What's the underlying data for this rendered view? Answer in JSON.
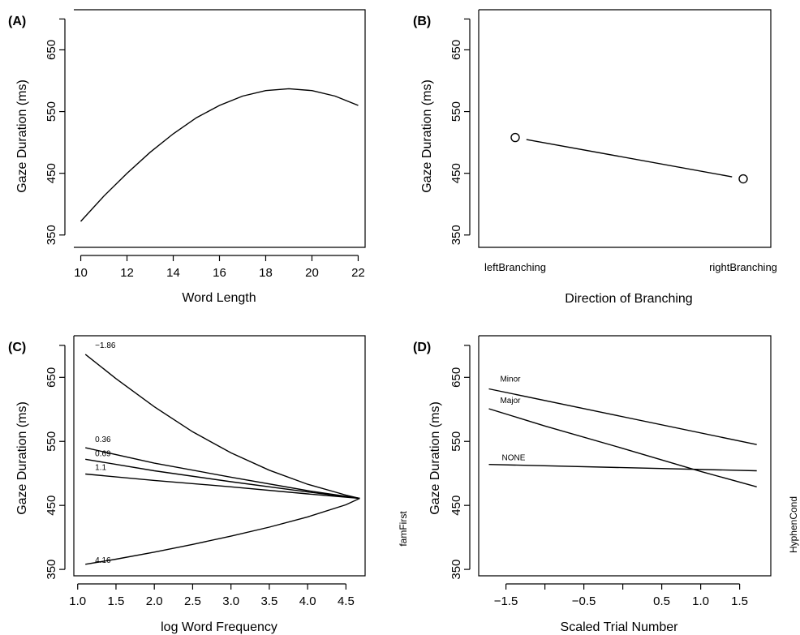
{
  "chart_data": [
    {
      "panel": "(A)",
      "type": "line",
      "xlabel": "Word Length",
      "ylabel": "Gaze Duration (ms)",
      "xlim": [
        9.7,
        22.3
      ],
      "ylim": [
        330,
        715
      ],
      "xticks": [
        "10",
        "12",
        "14",
        "16",
        "18",
        "20",
        "22"
      ],
      "yticks": [
        "350",
        "450",
        "550",
        "650"
      ],
      "series": [
        {
          "x": [
            10,
            11,
            12,
            13,
            14,
            15,
            16,
            17,
            18,
            19,
            20,
            21,
            22
          ],
          "y": [
            372,
            413,
            450,
            484,
            514,
            540,
            560,
            575,
            584,
            587,
            584,
            575,
            560
          ]
        }
      ]
    },
    {
      "panel": "(B)",
      "type": "scatter",
      "xlabel": "Direction of Branching",
      "ylabel": "Gaze Duration (ms)",
      "ylim": [
        330,
        715
      ],
      "yticks": [
        "350",
        "450",
        "550",
        "650"
      ],
      "categories": [
        "leftBranching",
        "rightBranching"
      ],
      "values": [
        508,
        441
      ]
    },
    {
      "panel": "(C)",
      "type": "line",
      "xlabel": "log Word Frequency",
      "ylabel": "Gaze Duration (ms)",
      "xlim": [
        0.95,
        4.75
      ],
      "ylim": [
        340,
        715
      ],
      "xticks": [
        "1.0",
        "1.5",
        "2.0",
        "2.5",
        "3.0",
        "3.5",
        "4.0",
        "4.5"
      ],
      "yticks": [
        "350",
        "450",
        "550",
        "650"
      ],
      "series": [
        {
          "name": "−1.86",
          "x": [
            1.1,
            1.5,
            2.0,
            2.5,
            3.0,
            3.5,
            4.0,
            4.5,
            4.68
          ],
          "y": [
            686,
            648,
            604,
            565,
            532,
            505,
            483,
            466,
            461
          ]
        },
        {
          "name": "0.36",
          "x": [
            1.1,
            2.0,
            3.0,
            4.0,
            4.68
          ],
          "y": [
            540,
            516,
            494,
            473,
            461
          ]
        },
        {
          "name": "0.69",
          "x": [
            1.1,
            2.0,
            3.0,
            4.0,
            4.68
          ],
          "y": [
            522,
            504,
            487,
            471,
            461
          ]
        },
        {
          "name": "1.1",
          "x": [
            1.1,
            2.0,
            3.0,
            4.0,
            4.68
          ],
          "y": [
            499,
            489,
            479,
            468,
            461
          ]
        },
        {
          "name": "4.16",
          "x": [
            1.1,
            1.5,
            2.0,
            2.5,
            3.0,
            3.5,
            4.0,
            4.5,
            4.68
          ],
          "y": [
            358,
            366,
            377,
            389,
            402,
            416,
            432,
            451,
            461
          ]
        }
      ]
    },
    {
      "panel": "(D)",
      "type": "line",
      "xlabel": "Scaled Trial Number",
      "ylabel": "Gaze Duration (ms)",
      "left_label": "famFirst",
      "right_label": "HyphenCond",
      "xlim": [
        -1.85,
        1.9
      ],
      "ylim": [
        340,
        715
      ],
      "xticks": [
        "−1.5",
        "",
        "−0.5",
        "",
        "0.5",
        "1.0",
        "1.5"
      ],
      "xtick_values": [
        -1.5,
        -1.0,
        -0.5,
        0.0,
        0.5,
        1.0,
        1.5
      ],
      "yticks": [
        "350",
        "450",
        "550",
        "650"
      ],
      "series": [
        {
          "name": "Minor",
          "x": [
            -1.72,
            1.72
          ],
          "y": [
            632,
            545
          ]
        },
        {
          "name": "Major",
          "x": [
            -1.72,
            -1.0,
            0.0,
            1.0,
            1.72
          ],
          "y": [
            601,
            574,
            539,
            503,
            479
          ]
        },
        {
          "name": "NONE",
          "x": [
            -1.72,
            1.72
          ],
          "y": [
            514,
            504
          ]
        }
      ]
    }
  ]
}
